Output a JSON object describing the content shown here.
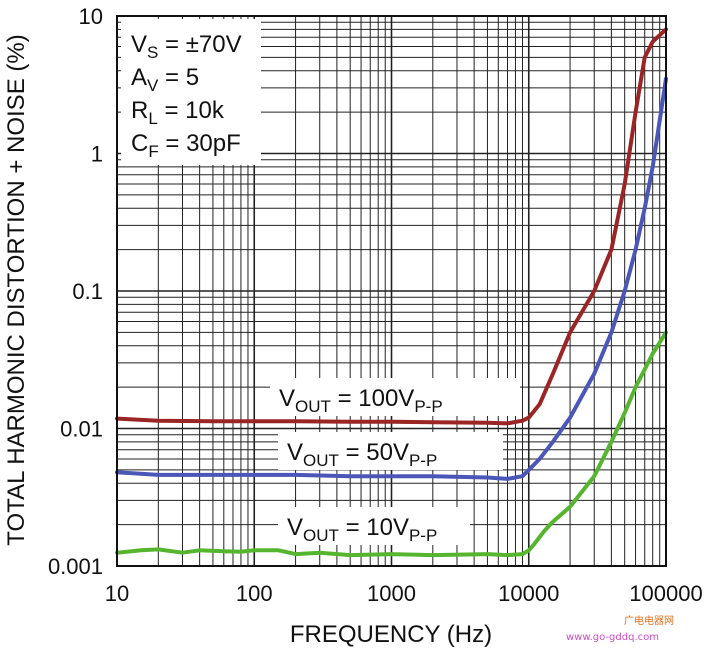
{
  "chart_data": {
    "type": "line",
    "xscale": "log",
    "yscale": "log",
    "xlim": [
      10,
      100000
    ],
    "ylim": [
      0.001,
      10
    ],
    "xlabel": "FREQUENCY (Hz)",
    "ylabel": "TOTAL HARMONIC DISTORTION + NOISE (%)",
    "x_ticks": [
      "10",
      "100",
      "1000",
      "10000",
      "100000"
    ],
    "y_ticks": [
      "0.001",
      "0.01",
      "0.1",
      "1",
      "10"
    ],
    "conditions": [
      {
        "symbol": "V",
        "sub": "S",
        "value": " = ±70V"
      },
      {
        "symbol": "A",
        "sub": "V",
        "value": " = 5"
      },
      {
        "symbol": "R",
        "sub": "L",
        "value": " = 10k"
      },
      {
        "symbol": "C",
        "sub": "F",
        "value": " = 30pF"
      }
    ],
    "series": [
      {
        "name": "VOUT = 100VP-P",
        "label_main": "V",
        "label_sub1": "OUT",
        "label_mid": " = 100V",
        "label_sub2": "P-P",
        "color": "#9b2525",
        "x": [
          10,
          20,
          50,
          100,
          200,
          500,
          1000,
          2000,
          5000,
          7000,
          9000,
          10000,
          12000,
          15000,
          20000,
          30000,
          40000,
          50000,
          60000,
          70000,
          80000,
          100000
        ],
        "y": [
          0.0118,
          0.0114,
          0.0113,
          0.0113,
          0.0113,
          0.0112,
          0.0112,
          0.0111,
          0.011,
          0.0109,
          0.0114,
          0.012,
          0.015,
          0.025,
          0.05,
          0.1,
          0.2,
          0.6,
          2.0,
          5.0,
          6.5,
          8.0
        ]
      },
      {
        "name": "VOUT = 50VP-P",
        "label_main": "V",
        "label_sub1": "OUT",
        "label_mid": " = 50V",
        "label_sub2": "P-P",
        "color": "#4a56b8",
        "x": [
          10,
          20,
          50,
          100,
          200,
          500,
          1000,
          2000,
          5000,
          7000,
          9000,
          10000,
          12000,
          15000,
          20000,
          30000,
          40000,
          50000,
          60000,
          70000,
          80000,
          100000
        ],
        "y": [
          0.0048,
          0.0046,
          0.0046,
          0.0046,
          0.0046,
          0.0045,
          0.0045,
          0.0045,
          0.0044,
          0.0043,
          0.0045,
          0.005,
          0.006,
          0.008,
          0.012,
          0.025,
          0.05,
          0.1,
          0.2,
          0.4,
          0.8,
          3.5
        ]
      },
      {
        "name": "VOUT = 10VP-P",
        "label_main": "V",
        "label_sub1": "OUT",
        "label_mid": " = 10V",
        "label_sub2": "P-P",
        "color": "#55b52f",
        "x": [
          10,
          15,
          20,
          30,
          40,
          60,
          80,
          100,
          150,
          200,
          300,
          500,
          1000,
          2000,
          5000,
          7000,
          9000,
          10000,
          11000,
          13000,
          15000,
          20000,
          30000,
          40000,
          50000,
          60000,
          80000,
          100000
        ],
        "y": [
          0.00125,
          0.0013,
          0.00132,
          0.00125,
          0.0013,
          0.00128,
          0.00127,
          0.0013,
          0.0013,
          0.00122,
          0.00125,
          0.0012,
          0.00122,
          0.0012,
          0.00122,
          0.0012,
          0.00122,
          0.0013,
          0.00145,
          0.0018,
          0.0021,
          0.0027,
          0.0045,
          0.008,
          0.013,
          0.02,
          0.035,
          0.05
        ]
      }
    ]
  },
  "watermark": {
    "line1": "广电电器网",
    "line2": "www.go-gddq.com"
  }
}
